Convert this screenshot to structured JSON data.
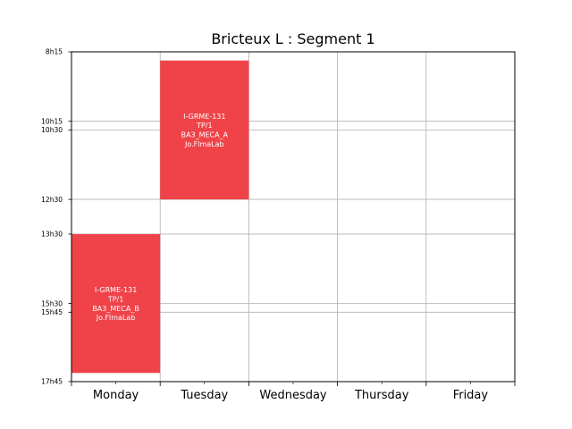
{
  "chart_data": {
    "type": "timetable",
    "title": "Bricteux L : Segment 1",
    "categories": [
      "Monday",
      "Tuesday",
      "Wednesday",
      "Thursday",
      "Friday"
    ],
    "y_ticks": [
      {
        "label": "8h15",
        "hours": 8.25
      },
      {
        "label": "10h15",
        "hours": 10.25
      },
      {
        "label": "10h30",
        "hours": 10.5
      },
      {
        "label": "12h30",
        "hours": 12.5
      },
      {
        "label": "13h30",
        "hours": 13.5
      },
      {
        "label": "15h30",
        "hours": 15.5
      },
      {
        "label": "15h45",
        "hours": 15.75
      },
      {
        "label": "17h45",
        "hours": 17.75
      }
    ],
    "ylim": [
      8.25,
      17.75
    ],
    "y_inverted": true,
    "grid": true,
    "event_color": "#ef4349",
    "events": [
      {
        "day": "Tuesday",
        "start": 8.5,
        "end": 12.5,
        "lines": [
          "I-GRME-131",
          "TP/1",
          "BA3_MECA_A",
          "Jo.FlmaLab"
        ]
      },
      {
        "day": "Monday",
        "start": 13.5,
        "end": 17.5,
        "lines": [
          "I-GRME-131",
          "TP/1",
          "BA3_MECA_B",
          "Jo.FlmaLab"
        ]
      }
    ]
  }
}
